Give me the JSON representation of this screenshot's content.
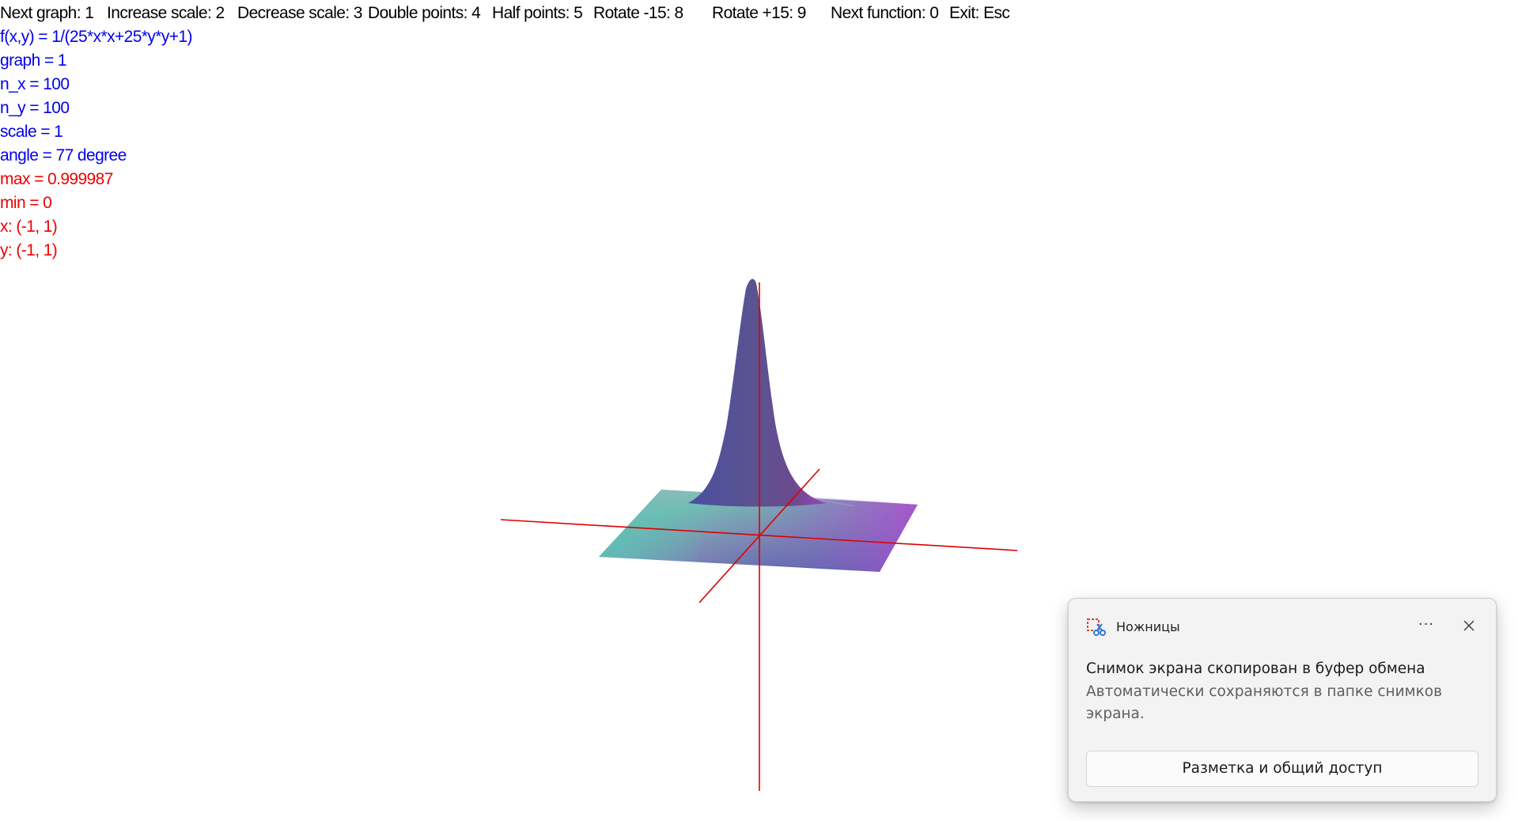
{
  "hotkeys": [
    "Next graph: 1",
    "Increase scale: 2",
    "Decrease scale: 3",
    "Double points: 4",
    "Half points: 5",
    "Rotate -15: 8",
    "Rotate +15: 9",
    "Next function: 0",
    "Exit: Esc"
  ],
  "info": {
    "function": "f(x,y) = 1/(25*x*x+25*y*y+1)",
    "graph": "graph = 1",
    "n_x": "n_x = 100",
    "n_y": "n_y = 100",
    "scale": "scale = 1",
    "angle": "angle = 77 degree",
    "max": "max = 0.999987",
    "min": "min = 0",
    "x_range": "x: (-1, 1)",
    "y_range": "y: (-1, 1)"
  },
  "colors": {
    "info_blue": "#0000ee",
    "info_red": "#ee0000",
    "axis": "#dd0000",
    "surface_peak": "#554b8e",
    "surface_left": "#5fb9b3",
    "surface_right": "#a351c4",
    "surface_front": "#4b55ac"
  },
  "toast": {
    "app_name": "Ножницы",
    "more_label": "···",
    "title": "Снимок экрана скопирован в буфер обмена",
    "body": "Автоматически сохраняются в папке снимков экрана.",
    "action_label": "Разметка и общий доступ",
    "app_icon": "scissors-icon",
    "close_icon": "close-icon"
  }
}
